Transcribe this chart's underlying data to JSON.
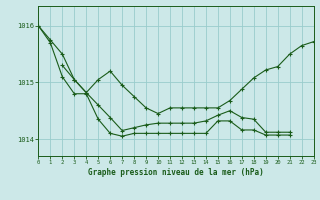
{
  "title": "Graphe pression niveau de la mer (hPa)",
  "bg_color": "#cce8e8",
  "grid_color": "#99cccc",
  "line_color": "#1a5c1a",
  "xlim": [
    0,
    23
  ],
  "ylim": [
    1013.7,
    1016.35
  ],
  "yticks": [
    1014,
    1015,
    1016
  ],
  "xticks": [
    0,
    1,
    2,
    3,
    4,
    5,
    6,
    7,
    8,
    9,
    10,
    11,
    12,
    13,
    14,
    15,
    16,
    17,
    18,
    19,
    20,
    21,
    22,
    23
  ],
  "s1x": [
    0,
    1,
    2,
    3,
    4,
    5,
    6,
    7,
    8,
    9,
    10,
    11,
    12,
    13,
    14,
    15,
    16,
    17,
    18,
    19,
    20,
    21
  ],
  "s1y": [
    1016.0,
    1015.75,
    1015.5,
    1015.05,
    1014.82,
    1014.6,
    1014.38,
    1014.15,
    1014.2,
    1014.25,
    1014.28,
    1014.28,
    1014.28,
    1014.28,
    1014.32,
    1014.42,
    1014.5,
    1014.38,
    1014.35,
    1014.12,
    1014.12,
    1014.12
  ],
  "s2x": [
    0,
    1,
    2,
    3,
    4,
    5,
    6,
    7,
    8,
    9,
    10,
    11,
    12,
    13,
    14,
    15,
    16,
    17,
    18,
    19,
    20,
    21
  ],
  "s2y": [
    1016.0,
    1015.7,
    1015.1,
    1014.8,
    1014.8,
    1014.35,
    1014.1,
    1014.05,
    1014.1,
    1014.1,
    1014.1,
    1014.1,
    1014.1,
    1014.1,
    1014.1,
    1014.32,
    1014.32,
    1014.16,
    1014.16,
    1014.07,
    1014.07,
    1014.07
  ],
  "s3x": [
    2,
    3,
    4,
    5,
    6,
    7,
    8,
    9,
    10,
    11,
    12,
    13,
    14,
    15,
    16,
    17,
    18,
    19,
    20,
    21,
    22,
    23
  ],
  "s3y": [
    1015.3,
    1015.05,
    1014.82,
    1015.05,
    1015.2,
    1014.95,
    1014.75,
    1014.55,
    1014.45,
    1014.55,
    1014.55,
    1014.55,
    1014.55,
    1014.55,
    1014.68,
    1014.88,
    1015.08,
    1015.22,
    1015.28,
    1015.5,
    1015.65,
    1015.72
  ]
}
